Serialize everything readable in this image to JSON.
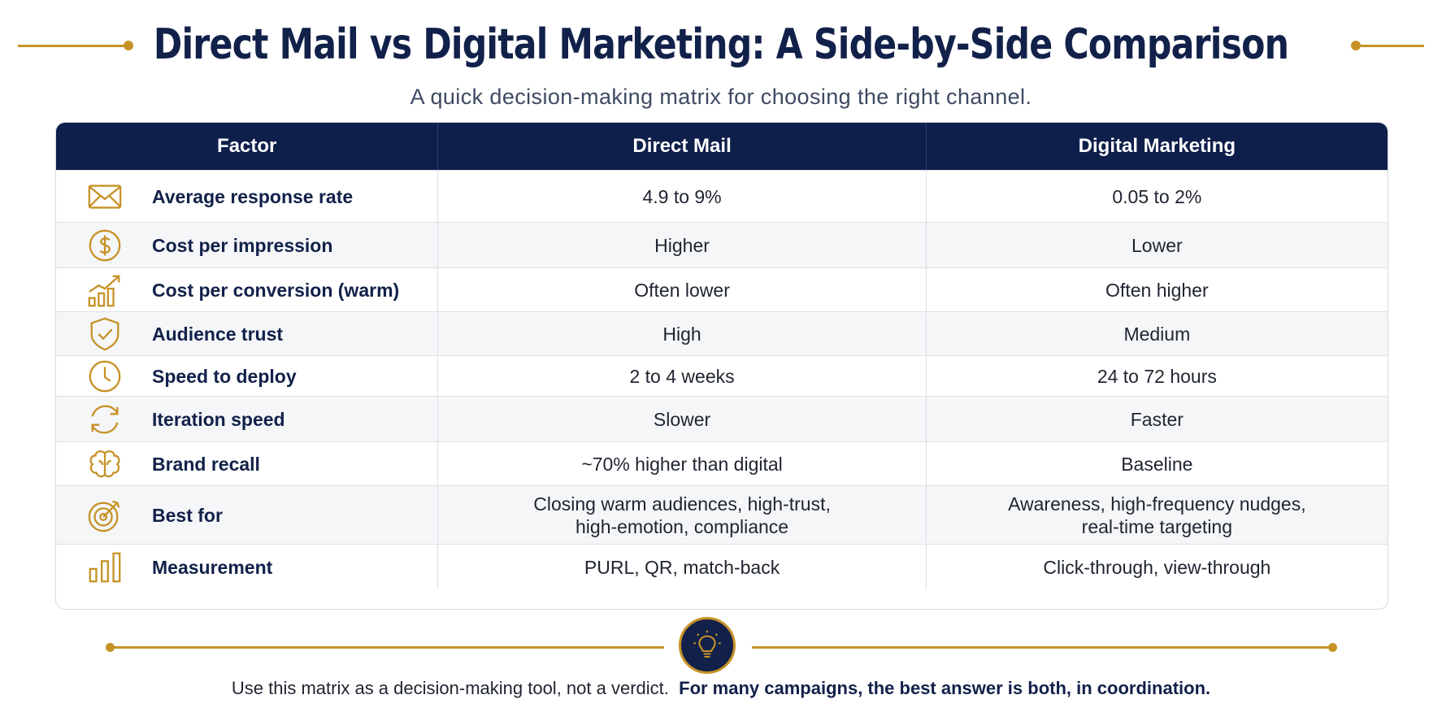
{
  "header": {
    "title": "Direct Mail vs Digital Marketing: A Side-by-Side Comparison",
    "subtitle": "A quick decision-making matrix for choosing the right channel."
  },
  "table": {
    "columns": [
      "Factor",
      "Direct Mail",
      "Digital Marketing"
    ],
    "rows": [
      {
        "icon": "envelope-icon",
        "factor": "Average response rate",
        "direct_mail": [
          "4.9 to 9%"
        ],
        "digital": [
          "0.05 to 2%"
        ]
      },
      {
        "icon": "dollar-icon",
        "factor": "Cost per impression",
        "direct_mail": [
          "Higher"
        ],
        "digital": [
          "Lower"
        ]
      },
      {
        "icon": "growth-chart-icon",
        "factor": "Cost per conversion (warm)",
        "direct_mail": [
          "Often lower"
        ],
        "digital": [
          "Often higher"
        ]
      },
      {
        "icon": "shield-check-icon",
        "factor": "Audience trust",
        "direct_mail": [
          "High"
        ],
        "digital": [
          "Medium"
        ]
      },
      {
        "icon": "clock-icon",
        "factor": "Speed to deploy",
        "direct_mail": [
          "2 to 4 weeks"
        ],
        "digital": [
          "24 to 72 hours"
        ]
      },
      {
        "icon": "refresh-icon",
        "factor": "Iteration speed",
        "direct_mail": [
          "Slower"
        ],
        "digital": [
          "Faster"
        ]
      },
      {
        "icon": "brain-icon",
        "factor": "Brand recall",
        "direct_mail": [
          "~70% higher than digital"
        ],
        "digital": [
          "Baseline"
        ]
      },
      {
        "icon": "target-icon",
        "factor": "Best for",
        "direct_mail": [
          "Closing warm audiences, high-trust,",
          "high-emotion, compliance"
        ],
        "digital": [
          "Awareness, high-frequency nudges,",
          "real-time targeting"
        ]
      },
      {
        "icon": "bar-chart-icon",
        "factor": "Measurement",
        "direct_mail": [
          "PURL, QR, match-back"
        ],
        "digital": [
          "Click-through, view-through"
        ]
      }
    ]
  },
  "footer": {
    "icon": "lightbulb-icon",
    "text": "Use this matrix as a decision-making tool, not a verdict.",
    "emphasis": "For many campaigns, the best answer is both, in coordination."
  },
  "colors": {
    "navy": "#0f1f4b",
    "gold": "#c69226"
  }
}
